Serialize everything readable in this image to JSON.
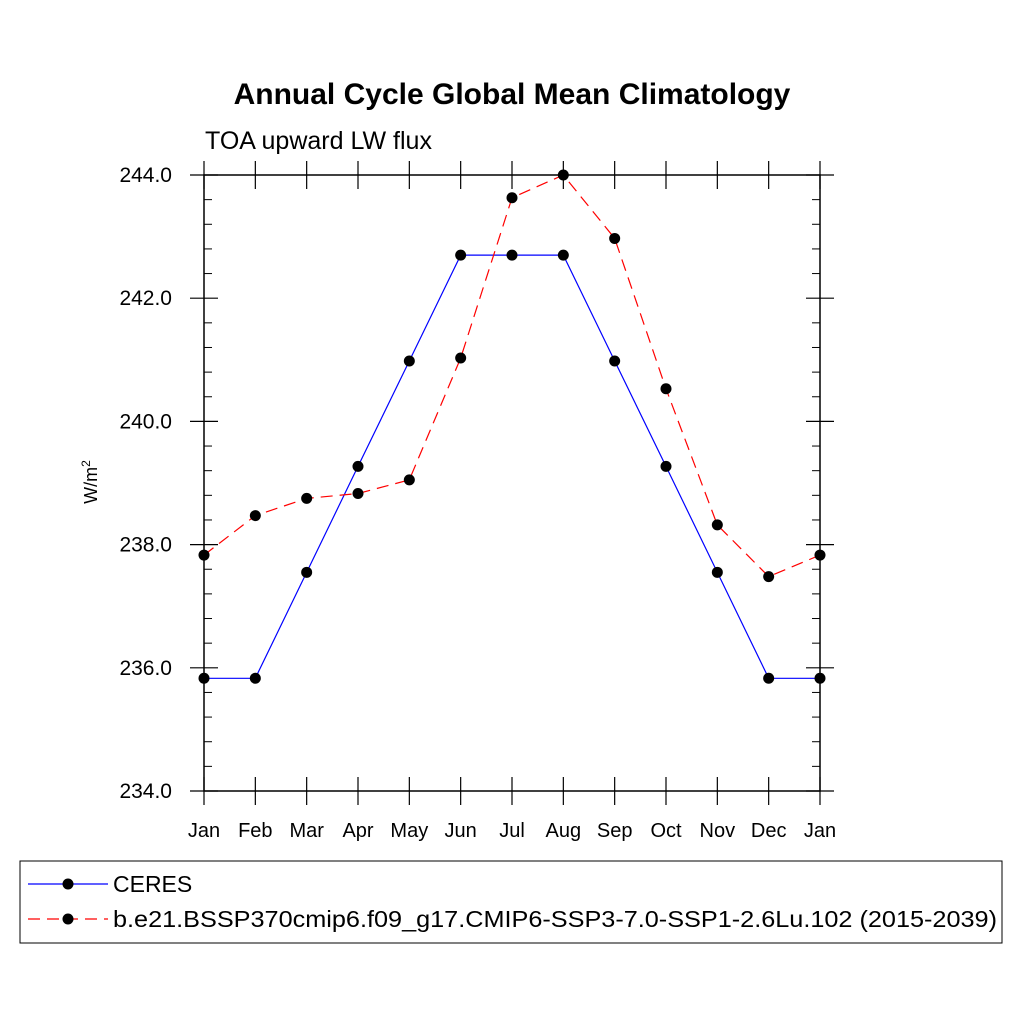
{
  "chart_data": {
    "type": "line",
    "title": "Annual Cycle Global Mean Climatology",
    "subtitle": "TOA upward LW flux",
    "ylabel_base": "W/m",
    "ylabel_sup": "2",
    "categories": [
      "Jan",
      "Feb",
      "Mar",
      "Apr",
      "May",
      "Jun",
      "Jul",
      "Aug",
      "Sep",
      "Oct",
      "Nov",
      "Dec",
      "Jan"
    ],
    "ylim": [
      234.0,
      244.0
    ],
    "yticks": [
      "234.0",
      "236.0",
      "238.0",
      "240.0",
      "242.0",
      "244.0"
    ],
    "grid": false,
    "legend_position": "bottom",
    "series": [
      {
        "name": "CERES",
        "color": "#0000ff",
        "dash": "solid",
        "values": [
          235.83,
          235.83,
          237.55,
          239.27,
          240.98,
          242.7,
          242.7,
          242.7,
          240.98,
          239.27,
          237.55,
          235.83,
          235.83
        ]
      },
      {
        "name": "b.e21.BSSP370cmip6.f09_g17.CMIP6-SSP3-7.0-SSP1-2.6Lu.102 (2015-2039)",
        "color": "#ff0000",
        "dash": "dashed",
        "values": [
          237.83,
          238.47,
          238.75,
          238.83,
          239.05,
          241.03,
          243.63,
          244.0,
          242.97,
          240.53,
          238.32,
          237.48,
          237.83
        ]
      }
    ]
  }
}
